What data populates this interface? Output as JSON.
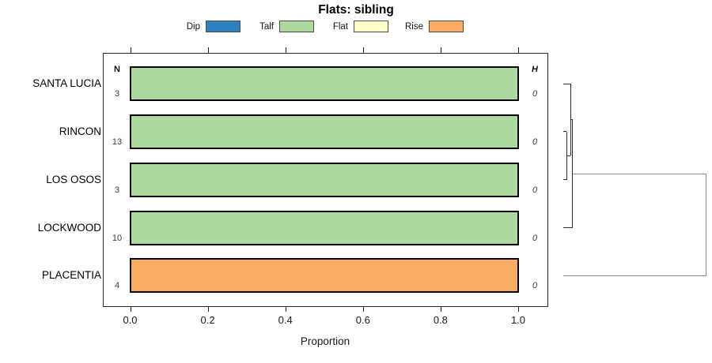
{
  "chart_data": {
    "type": "bar",
    "orientation": "horizontal",
    "title": "Flats: sibling",
    "xlabel": "Proportion",
    "xlim": [
      0,
      1.08
    ],
    "xticks": [
      0,
      0.2,
      0.4,
      0.6,
      0.8,
      1.0
    ],
    "xtick_labels": [
      "0.0",
      "0.2",
      "0.4",
      "0.6",
      "0.8",
      "1.0"
    ],
    "grid": false,
    "legend_position": "top-center",
    "left_column_header": "N",
    "right_column_header": "H",
    "categories": [
      "SANTA LUCIA",
      "RINCON",
      "LOS OSOS",
      "LOCKWOOD",
      "PLACENTIA"
    ],
    "rows": [
      {
        "label": "SANTA LUCIA",
        "n": "3",
        "segment": "Talf",
        "proportion": 1.0,
        "h": "0"
      },
      {
        "label": "RINCON",
        "n": "13",
        "segment": "Talf",
        "proportion": 1.0,
        "h": "0"
      },
      {
        "label": "LOS OSOS",
        "n": "3",
        "segment": "Talf",
        "proportion": 1.0,
        "h": "0"
      },
      {
        "label": "LOCKWOOD",
        "n": "10",
        "segment": "Talf",
        "proportion": 1.0,
        "h": "0"
      },
      {
        "label": "PLACENTIA",
        "n": "4",
        "segment": "Rise",
        "proportion": 1.0,
        "h": "0"
      }
    ],
    "legend": [
      {
        "label": "Dip",
        "color": "#2f7fbc"
      },
      {
        "label": "Talf",
        "color": "#acd99e"
      },
      {
        "label": "Flat",
        "color": "#ffffc8"
      },
      {
        "label": "Rise",
        "color": "#fbac62"
      }
    ],
    "dendrogram": {
      "description": "row-cluster tree drawn to the right of the plot box",
      "merges": [
        {
          "pair": [
            "RINCON",
            "LOS OSOS"
          ],
          "height": 0
        },
        {
          "pair": [
            "SANTA LUCIA",
            "(RINCON,LOS OSOS)"
          ],
          "height": 0
        },
        {
          "pair": [
            "(SANTA LUCIA,RINCON,LOS OSOS)",
            "LOCKWOOD"
          ],
          "height": 0
        },
        {
          "pair": [
            "(SANTA LUCIA,RINCON,LOS OSOS,LOCKWOOD)",
            "PLACENTIA"
          ],
          "height": 1
        }
      ]
    }
  }
}
